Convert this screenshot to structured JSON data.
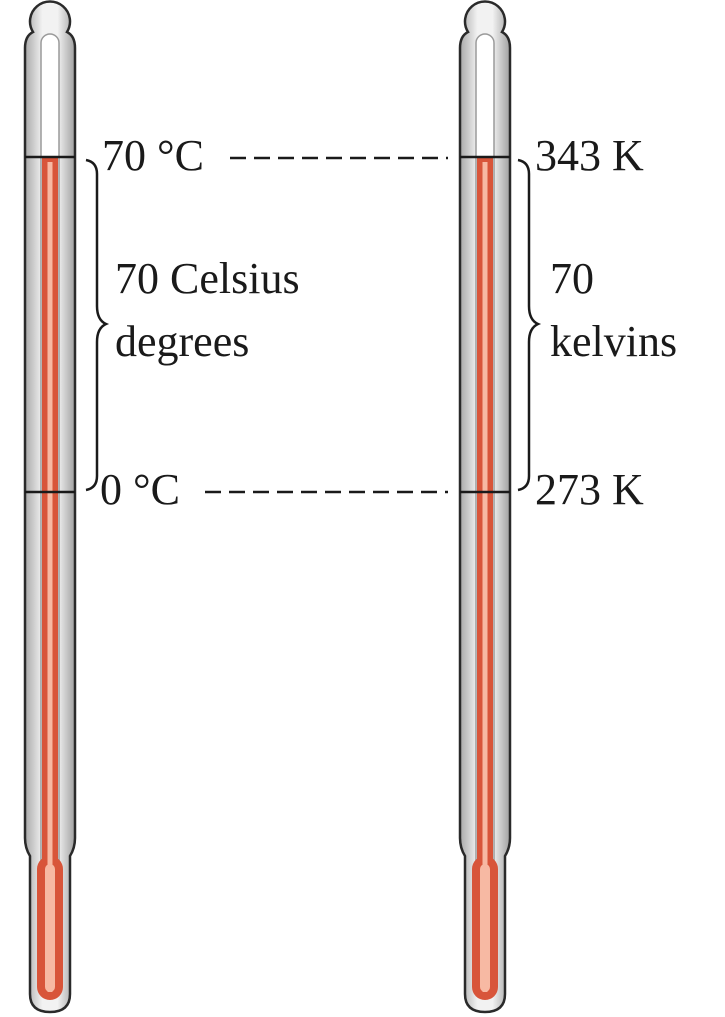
{
  "celsius": {
    "top_label": "70 °C",
    "bottom_label": "0 °C",
    "span_label": [
      "70 Celsius",
      "degrees"
    ]
  },
  "kelvin": {
    "top_label": "343 K",
    "bottom_label": "273 K",
    "span_label": [
      "70",
      "kelvins"
    ]
  }
}
